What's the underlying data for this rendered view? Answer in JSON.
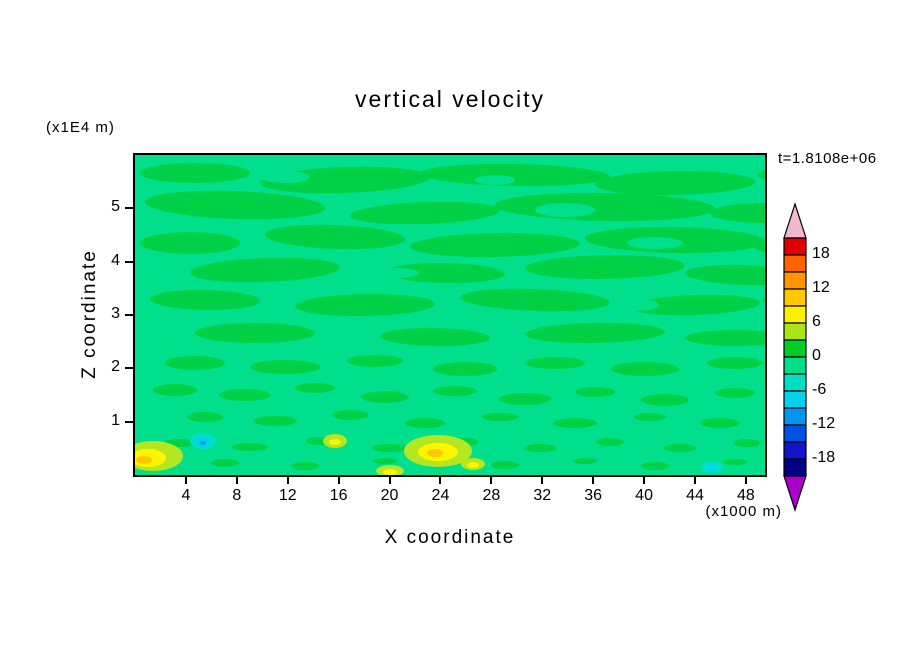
{
  "chart_data": {
    "type": "heatmap",
    "title": "vertical velocity",
    "time_label": "t=1.8108e+06",
    "x_axis": {
      "label": "X coordinate",
      "units": "(x1000 m)",
      "min": 0,
      "max": 49.5,
      "ticks": [
        4,
        8,
        12,
        16,
        20,
        24,
        28,
        32,
        36,
        40,
        44,
        48
      ]
    },
    "y_axis": {
      "label": "Z coordinate",
      "units": "(x1E4 m)",
      "min": 0,
      "max": 6,
      "ticks": [
        1,
        2,
        3,
        4,
        5
      ]
    },
    "colorbar": {
      "levels_step": 3,
      "labels": [
        "18",
        "12",
        "6",
        "0",
        "-6",
        "-12",
        "-18"
      ],
      "label_boundaries": [
        1,
        3,
        5,
        7,
        9,
        11,
        13
      ],
      "segment_colors": [
        "#E10000",
        "#FF6400",
        "#FF9600",
        "#FFC800",
        "#FFF000",
        "#AAE614",
        "#00CD28",
        "#00E187",
        "#00DFC3",
        "#00D2F0",
        "#0096F0",
        "#0050E6",
        "#1414C8",
        "#000082"
      ],
      "top_arrow_color": "#F0B9CE",
      "bottom_arrow_color": "#AA00C8"
    },
    "field": {
      "colors": {
        "bg": "#00E08C",
        "patch": "#00D045",
        "yellow_green": "#B4E621",
        "yellow": "#FFF500",
        "gold": "#FFC800",
        "turquoise": "#00DFC8",
        "cyan": "#00D2F0",
        "blue": "#0096F0"
      },
      "shapes": [
        [
          "patch",
          60,
          18,
          55,
          10,
          0
        ],
        [
          "patch",
          210,
          25,
          85,
          13,
          -2
        ],
        [
          "patch",
          380,
          20,
          95,
          11,
          1
        ],
        [
          "patch",
          540,
          28,
          80,
          12,
          -1
        ],
        [
          "patch",
          668,
          20,
          45,
          9,
          0
        ],
        [
          "patch",
          100,
          50,
          90,
          14,
          2
        ],
        [
          "patch",
          290,
          58,
          75,
          11,
          -2
        ],
        [
          "patch",
          470,
          52,
          110,
          14,
          1
        ],
        [
          "patch",
          630,
          58,
          55,
          10,
          0
        ],
        [
          "patch",
          55,
          88,
          50,
          11,
          0
        ],
        [
          "patch",
          200,
          82,
          70,
          12,
          2
        ],
        [
          "patch",
          360,
          90,
          85,
          12,
          -1
        ],
        [
          "patch",
          540,
          85,
          90,
          13,
          1
        ],
        [
          "patch",
          660,
          92,
          40,
          8,
          0
        ],
        [
          "patch",
          130,
          115,
          75,
          12,
          -2
        ],
        [
          "patch",
          310,
          118,
          60,
          10,
          1
        ],
        [
          "patch",
          470,
          112,
          80,
          12,
          -1
        ],
        [
          "patch",
          610,
          120,
          60,
          10,
          2
        ],
        [
          "patch",
          70,
          145,
          55,
          10,
          1
        ],
        [
          "patch",
          230,
          150,
          70,
          11,
          -1
        ],
        [
          "patch",
          400,
          145,
          75,
          11,
          2
        ],
        [
          "patch",
          560,
          150,
          65,
          10,
          -2
        ],
        [
          "patch",
          662,
          145,
          35,
          7,
          0
        ],
        [
          "patch",
          120,
          178,
          60,
          10,
          0
        ],
        [
          "patch",
          300,
          182,
          55,
          9,
          1
        ],
        [
          "patch",
          460,
          178,
          70,
          10,
          -1
        ],
        [
          "patch",
          600,
          183,
          50,
          8,
          0
        ],
        [
          "patch",
          60,
          208,
          30,
          7,
          0
        ],
        [
          "patch",
          150,
          212,
          35,
          7,
          0
        ],
        [
          "patch",
          240,
          206,
          28,
          6,
          0
        ],
        [
          "patch",
          330,
          214,
          32,
          7,
          0
        ],
        [
          "patch",
          420,
          208,
          30,
          6,
          0
        ],
        [
          "patch",
          510,
          214,
          34,
          7,
          0
        ],
        [
          "patch",
          600,
          208,
          28,
          6,
          0
        ],
        [
          "patch",
          40,
          235,
          22,
          6,
          0
        ],
        [
          "patch",
          110,
          240,
          26,
          6,
          0
        ],
        [
          "patch",
          180,
          233,
          20,
          5,
          0
        ],
        [
          "patch",
          250,
          242,
          24,
          6,
          0
        ],
        [
          "patch",
          320,
          236,
          22,
          5,
          0
        ],
        [
          "patch",
          390,
          244,
          26,
          6,
          0
        ],
        [
          "patch",
          460,
          237,
          20,
          5,
          0
        ],
        [
          "patch",
          530,
          245,
          24,
          6,
          0
        ],
        [
          "patch",
          600,
          238,
          20,
          5,
          0
        ],
        [
          "patch",
          70,
          262,
          18,
          5,
          0
        ],
        [
          "patch",
          140,
          266,
          22,
          5,
          0
        ],
        [
          "patch",
          215,
          260,
          18,
          5,
          0
        ],
        [
          "patch",
          290,
          268,
          20,
          5,
          0
        ],
        [
          "patch",
          365,
          262,
          18,
          4,
          0
        ],
        [
          "patch",
          440,
          268,
          22,
          5,
          0
        ],
        [
          "patch",
          515,
          262,
          16,
          4,
          0
        ],
        [
          "patch",
          585,
          268,
          20,
          5,
          0
        ],
        [
          "patch",
          45,
          288,
          16,
          4,
          0
        ],
        [
          "patch",
          115,
          292,
          18,
          4,
          0
        ],
        [
          "patch",
          185,
          286,
          14,
          4,
          0
        ],
        [
          "patch",
          255,
          293,
          18,
          4,
          0
        ],
        [
          "patch",
          330,
          287,
          14,
          4,
          0
        ],
        [
          "patch",
          405,
          293,
          16,
          4,
          0
        ],
        [
          "patch",
          475,
          287,
          14,
          4,
          0
        ],
        [
          "patch",
          545,
          293,
          16,
          4,
          0
        ],
        [
          "patch",
          612,
          288,
          14,
          4,
          0
        ],
        [
          "patch",
          90,
          308,
          14,
          4,
          0
        ],
        [
          "patch",
          170,
          311,
          14,
          4,
          0
        ],
        [
          "patch",
          250,
          306,
          12,
          3,
          0
        ],
        [
          "patch",
          370,
          310,
          14,
          4,
          0
        ],
        [
          "patch",
          450,
          306,
          12,
          3,
          0
        ],
        [
          "patch",
          520,
          311,
          14,
          4,
          0
        ],
        [
          "patch",
          600,
          307,
          12,
          3,
          0
        ],
        [
          "bg",
          150,
          22,
          25,
          6,
          0
        ],
        [
          "bg",
          360,
          25,
          20,
          5,
          0
        ],
        [
          "bg",
          430,
          55,
          30,
          7,
          0
        ],
        [
          "bg",
          520,
          88,
          28,
          6,
          0
        ],
        [
          "bg",
          262,
          118,
          22,
          5,
          0
        ],
        [
          "bg",
          500,
          150,
          24,
          6,
          0
        ],
        [
          "yellow_green",
          18,
          301,
          30,
          15,
          0
        ],
        [
          "yellow",
          13,
          303,
          18,
          9,
          0
        ],
        [
          "gold",
          9,
          305,
          8,
          4,
          0
        ],
        [
          "turquoise",
          68,
          286,
          13,
          8,
          0
        ],
        [
          "cyan",
          68,
          287,
          7,
          4,
          0
        ],
        [
          "blue",
          68,
          288,
          3,
          2,
          0
        ],
        [
          "yellow_green",
          200,
          286,
          12,
          7,
          0
        ],
        [
          "yellow",
          200,
          287,
          6,
          3,
          0
        ],
        [
          "yellow_green",
          303,
          296,
          34,
          16,
          0
        ],
        [
          "yellow",
          303,
          297,
          20,
          9,
          0
        ],
        [
          "gold",
          300,
          298,
          8,
          4,
          0
        ],
        [
          "yellow_green",
          338,
          309,
          12,
          6,
          0
        ],
        [
          "yellow",
          338,
          310,
          6,
          3,
          0
        ],
        [
          "yellow_green",
          255,
          316,
          14,
          6,
          0
        ],
        [
          "yellow",
          255,
          317,
          7,
          3,
          0
        ],
        [
          "turquoise",
          577,
          312,
          11,
          6,
          0
        ],
        [
          "cyan",
          577,
          313,
          5,
          3,
          0
        ]
      ]
    }
  }
}
